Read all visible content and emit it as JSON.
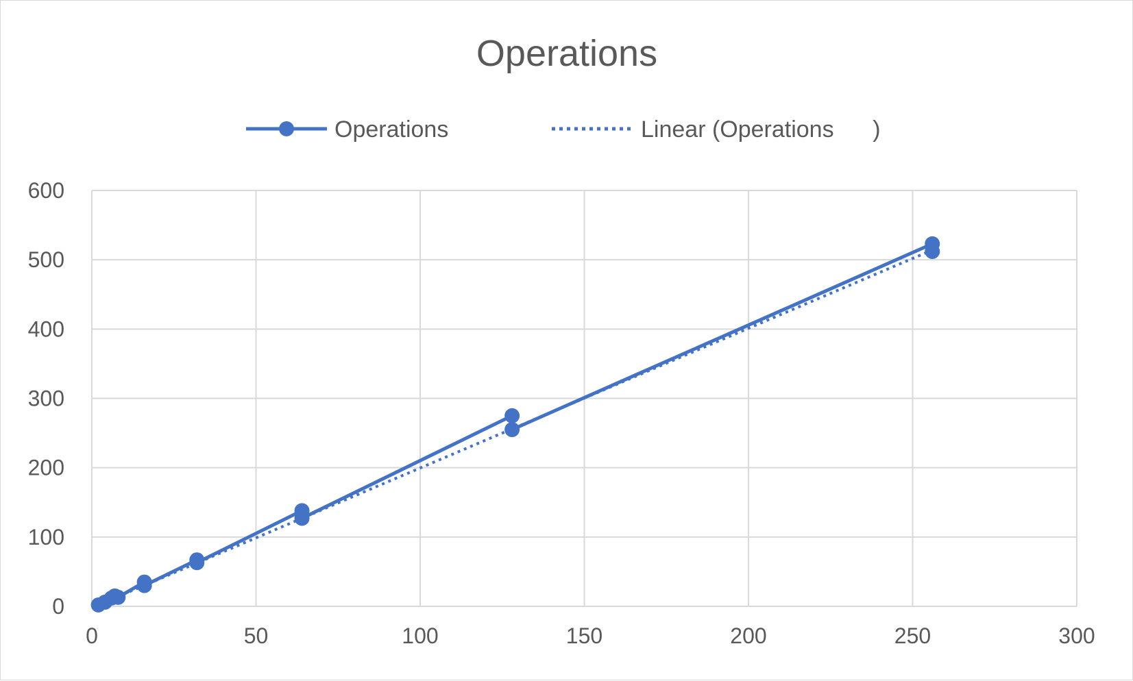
{
  "chart_data": {
    "type": "line",
    "title": "Operations",
    "xlabel": "",
    "ylabel": "",
    "xlim": [
      0,
      300
    ],
    "ylim": [
      0,
      600
    ],
    "x_ticks": [
      "0",
      "50",
      "100",
      "150",
      "200",
      "250",
      "300"
    ],
    "y_ticks": [
      "0",
      "100",
      "200",
      "300",
      "400",
      "500",
      "600"
    ],
    "grid": true,
    "legend_position": "top",
    "series": [
      {
        "name": "Operations",
        "style": "line-with-markers",
        "color": "#4472c4",
        "points": [
          {
            "x": 2,
            "y": 2
          },
          {
            "x": 4,
            "y": 6
          },
          {
            "x": 6,
            "y": 12
          },
          {
            "x": 7,
            "y": 15
          },
          {
            "x": 8,
            "y": 13
          },
          {
            "x": 16,
            "y": 35
          },
          {
            "x": 16,
            "y": 30
          },
          {
            "x": 32,
            "y": 67
          },
          {
            "x": 32,
            "y": 63
          },
          {
            "x": 64,
            "y": 138
          },
          {
            "x": 64,
            "y": 127
          },
          {
            "x": 128,
            "y": 275
          },
          {
            "x": 128,
            "y": 255
          },
          {
            "x": 256,
            "y": 523
          },
          {
            "x": 256,
            "y": 512
          }
        ]
      },
      {
        "name": "Linear (Operations      )",
        "style": "dotted-trendline",
        "color": "#4472c4",
        "points": [
          {
            "x": 0,
            "y": -2
          },
          {
            "x": 256,
            "y": 514
          }
        ]
      }
    ]
  }
}
